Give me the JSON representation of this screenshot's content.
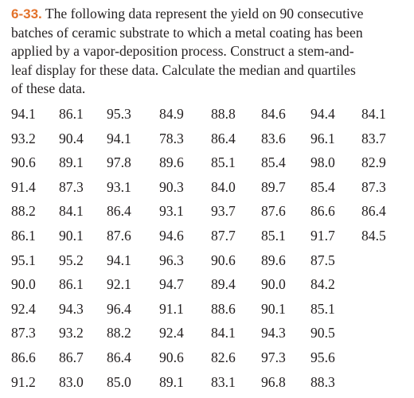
{
  "problem": {
    "number": "6-33.",
    "lines": [
      "The following data represent the yield on 90 consecutive",
      "batches of ceramic substrate to which a metal coating has been",
      "applied by a vapor-deposition process. Construct a stem-and-",
      "leaf display for these data. Calculate the median and quartiles",
      "of these data."
    ]
  },
  "data_rows": [
    [
      "94.1",
      "86.1",
      "95.3",
      "84.9",
      "88.8",
      "84.6",
      "94.4",
      "84.1"
    ],
    [
      "93.2",
      "90.4",
      "94.1",
      "78.3",
      "86.4",
      "83.6",
      "96.1",
      "83.7"
    ],
    [
      "90.6",
      "89.1",
      "97.8",
      "89.6",
      "85.1",
      "85.4",
      "98.0",
      "82.9"
    ],
    [
      "91.4",
      "87.3",
      "93.1",
      "90.3",
      "84.0",
      "89.7",
      "85.4",
      "87.3"
    ],
    [
      "88.2",
      "84.1",
      "86.4",
      "93.1",
      "93.7",
      "87.6",
      "86.6",
      "86.4"
    ],
    [
      "86.1",
      "90.1",
      "87.6",
      "94.6",
      "87.7",
      "85.1",
      "91.7",
      "84.5"
    ],
    [
      "95.1",
      "95.2",
      "94.1",
      "96.3",
      "90.6",
      "89.6",
      "87.5"
    ],
    [
      "90.0",
      "86.1",
      "92.1",
      "94.7",
      "89.4",
      "90.0",
      "84.2"
    ],
    [
      "92.4",
      "94.3",
      "96.4",
      "91.1",
      "88.6",
      "90.1",
      "85.1"
    ],
    [
      "87.3",
      "93.2",
      "88.2",
      "92.4",
      "84.1",
      "94.3",
      "90.5"
    ],
    [
      "86.6",
      "86.7",
      "86.4",
      "90.6",
      "82.6",
      "97.3",
      "95.6"
    ],
    [
      "91.2",
      "83.0",
      "85.0",
      "89.1",
      "83.1",
      "96.8",
      "88.3"
    ]
  ]
}
